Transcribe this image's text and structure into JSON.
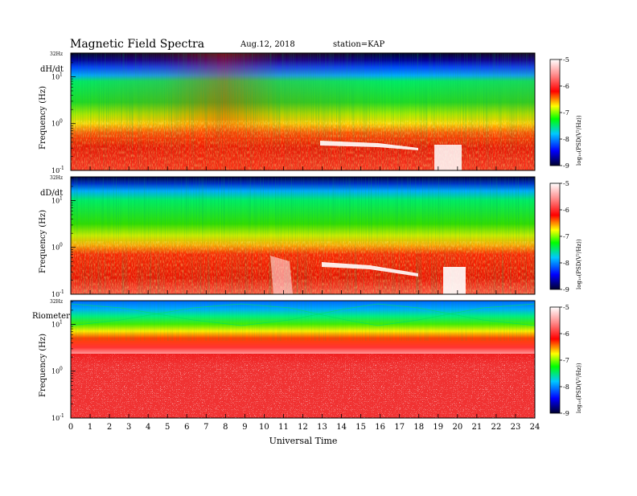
{
  "header": {
    "title": "Magnetic  Field  Spectra",
    "date": "Aug.12, 2018",
    "station": "station=KAP"
  },
  "chart_data": [
    {
      "type": "heatmap",
      "panel_label": "dH/dt",
      "ylabel": "Frequency  (Hz)",
      "top_label": "32Hz",
      "ytick_labels": [
        "10",
        "10",
        "10"
      ],
      "ytick_exponents": [
        "1",
        "0",
        "-1"
      ],
      "ytick_values": [
        10,
        1,
        0.1
      ],
      "ylim": [
        0.1,
        32
      ],
      "yscale": "log",
      "xlim": [
        0,
        24
      ],
      "colorbar": {
        "label": "log₁₀(PSD(V²/Hz))",
        "ticks": [
          "-5",
          "-6",
          "-7",
          "-8",
          "-9"
        ],
        "range": [
          -9,
          -5
        ]
      }
    },
    {
      "type": "heatmap",
      "panel_label": "dD/dt",
      "ylabel": "Frequency  (Hz)",
      "top_label": "32Hz",
      "ytick_labels": [
        "10",
        "10",
        "10"
      ],
      "ytick_exponents": [
        "1",
        "0",
        "-1"
      ],
      "ytick_values": [
        10,
        1,
        0.1
      ],
      "ylim": [
        0.1,
        32
      ],
      "yscale": "log",
      "xlim": [
        0,
        24
      ],
      "colorbar": {
        "label": "log₁₀(PSD(V²/Hz))",
        "ticks": [
          "-5",
          "-6",
          "-7",
          "-8",
          "-9"
        ],
        "range": [
          -9,
          -5
        ]
      }
    },
    {
      "type": "heatmap",
      "panel_label": "Riometer",
      "ylabel": "Frequency  (Hz)",
      "top_label": "32Hz",
      "ytick_labels": [
        "10",
        "10",
        "10"
      ],
      "ytick_exponents": [
        "1",
        "0",
        "-1"
      ],
      "ytick_values": [
        10,
        1,
        0.1
      ],
      "ylim": [
        0.1,
        32
      ],
      "yscale": "log",
      "xlim": [
        0,
        24
      ],
      "colorbar": {
        "label": "log₁₀(PSD(V²/Hz))",
        "ticks": [
          "-5",
          "-6",
          "-7",
          "-8",
          "-9"
        ],
        "range": [
          -9,
          -5
        ]
      }
    }
  ],
  "xaxis": {
    "label": "Universal Time",
    "ticks": [
      "0",
      "1",
      "2",
      "3",
      "4",
      "5",
      "6",
      "7",
      "8",
      "9",
      "10",
      "11",
      "12",
      "13",
      "14",
      "15",
      "16",
      "17",
      "18",
      "19",
      "20",
      "21",
      "22",
      "23",
      "24"
    ],
    "tick_values": [
      0,
      1,
      2,
      3,
      4,
      5,
      6,
      7,
      8,
      9,
      10,
      11,
      12,
      13,
      14,
      15,
      16,
      17,
      18,
      19,
      20,
      21,
      22,
      23,
      24
    ]
  }
}
